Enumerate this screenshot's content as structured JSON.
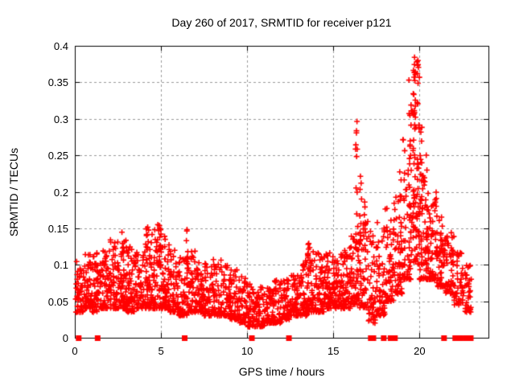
{
  "chart_data": {
    "type": "scatter",
    "title": "Day 260 of 2017, SRMTID for receiver p121",
    "xlabel": "GPS time / hours",
    "ylabel": "SRMTID / TECUs",
    "xlim": [
      0,
      24
    ],
    "ylim": [
      0,
      0.4
    ],
    "xticks": [
      {
        "v": 0,
        "label": "0"
      },
      {
        "v": 5,
        "label": "5"
      },
      {
        "v": 10,
        "label": "10"
      },
      {
        "v": 15,
        "label": "15"
      },
      {
        "v": 20,
        "label": "20"
      }
    ],
    "yticks": [
      {
        "v": 0,
        "label": "0"
      },
      {
        "v": 0.05,
        "label": "0.05"
      },
      {
        "v": 0.1,
        "label": "0.1"
      },
      {
        "v": 0.15,
        "label": "0.15"
      },
      {
        "v": 0.2,
        "label": "0.2"
      },
      {
        "v": 0.25,
        "label": "0.25"
      },
      {
        "v": 0.3,
        "label": "0.3"
      },
      {
        "v": 0.35,
        "label": "0.35"
      },
      {
        "v": 0.4,
        "label": "0.4"
      }
    ],
    "grid": {
      "show": true,
      "color": "#9a9a9a",
      "dash": [
        3,
        3
      ]
    },
    "legend": "none",
    "marker": {
      "shape": "plus",
      "color": "#ff0000",
      "size": 7
    },
    "series": [
      {
        "name": "SRMTID",
        "note": "dense scatter ~2400 pts; density_bins = [hour_start, hour_end, n_points, y_low, y_high, tail_exponent]; streaks = vertical clusters [hour, y_low, y_high, n]; zero_markers_hours = points plotted at y=0 on the axis",
        "density_bins": [
          [
            0.05,
            0.5,
            48,
            0.035,
            0.105,
            1.8
          ],
          [
            0.5,
            1.0,
            55,
            0.04,
            0.115,
            1.8
          ],
          [
            1.0,
            1.5,
            55,
            0.035,
            0.12,
            1.9
          ],
          [
            1.5,
            2.0,
            55,
            0.04,
            0.125,
            1.9
          ],
          [
            2.0,
            2.5,
            60,
            0.04,
            0.135,
            2.0
          ],
          [
            2.5,
            3.0,
            60,
            0.04,
            0.145,
            2.0
          ],
          [
            3.0,
            3.5,
            60,
            0.035,
            0.125,
            1.9
          ],
          [
            3.5,
            4.0,
            55,
            0.04,
            0.12,
            1.9
          ],
          [
            4.0,
            4.5,
            60,
            0.04,
            0.15,
            2.0
          ],
          [
            4.5,
            5.0,
            60,
            0.04,
            0.155,
            2.0
          ],
          [
            5.0,
            5.5,
            60,
            0.04,
            0.14,
            2.0
          ],
          [
            5.5,
            6.0,
            55,
            0.035,
            0.12,
            1.9
          ],
          [
            6.0,
            6.5,
            55,
            0.03,
            0.115,
            1.9
          ],
          [
            6.5,
            7.0,
            55,
            0.035,
            0.12,
            1.9
          ],
          [
            7.0,
            7.5,
            55,
            0.035,
            0.11,
            1.8
          ],
          [
            7.5,
            8.0,
            50,
            0.03,
            0.105,
            1.8
          ],
          [
            8.0,
            8.5,
            50,
            0.03,
            0.11,
            1.8
          ],
          [
            8.5,
            9.0,
            50,
            0.03,
            0.1,
            1.8
          ],
          [
            9.0,
            9.5,
            50,
            0.025,
            0.095,
            1.8
          ],
          [
            9.5,
            10.0,
            50,
            0.02,
            0.085,
            1.8
          ],
          [
            10.0,
            10.5,
            50,
            0.015,
            0.075,
            1.7
          ],
          [
            10.5,
            11.0,
            50,
            0.015,
            0.07,
            1.7
          ],
          [
            11.0,
            11.5,
            50,
            0.02,
            0.075,
            1.7
          ],
          [
            11.5,
            12.0,
            50,
            0.02,
            0.08,
            1.7
          ],
          [
            12.0,
            12.5,
            50,
            0.025,
            0.08,
            1.7
          ],
          [
            12.5,
            13.0,
            50,
            0.03,
            0.09,
            1.8
          ],
          [
            13.0,
            13.5,
            55,
            0.03,
            0.11,
            1.9
          ],
          [
            13.5,
            14.0,
            55,
            0.035,
            0.13,
            2.0
          ],
          [
            14.0,
            14.5,
            55,
            0.035,
            0.12,
            1.9
          ],
          [
            14.5,
            15.0,
            55,
            0.04,
            0.12,
            1.9
          ],
          [
            15.0,
            15.5,
            55,
            0.04,
            0.115,
            1.8
          ],
          [
            15.5,
            16.0,
            55,
            0.04,
            0.13,
            1.9
          ],
          [
            16.0,
            16.5,
            55,
            0.045,
            0.14,
            1.9
          ],
          [
            16.5,
            17.0,
            50,
            0.04,
            0.16,
            2.0
          ],
          [
            17.0,
            17.5,
            45,
            0.02,
            0.15,
            1.9
          ],
          [
            17.5,
            18.0,
            48,
            0.03,
            0.16,
            1.9
          ],
          [
            18.0,
            18.5,
            52,
            0.05,
            0.18,
            1.9
          ],
          [
            18.5,
            19.0,
            52,
            0.06,
            0.2,
            1.9
          ],
          [
            19.0,
            19.5,
            55,
            0.08,
            0.28,
            2.0
          ],
          [
            19.5,
            20.0,
            60,
            0.1,
            0.38,
            1.8
          ],
          [
            20.0,
            20.5,
            58,
            0.08,
            0.26,
            2.0
          ],
          [
            20.5,
            21.0,
            55,
            0.08,
            0.2,
            1.9
          ],
          [
            21.0,
            21.5,
            50,
            0.07,
            0.17,
            1.9
          ],
          [
            21.5,
            22.0,
            45,
            0.06,
            0.145,
            1.9
          ],
          [
            22.0,
            22.5,
            40,
            0.045,
            0.12,
            1.9
          ],
          [
            22.5,
            23.0,
            30,
            0.035,
            0.1,
            1.8
          ]
        ],
        "streaks": [
          [
            2.8,
            0.115,
            0.145,
            5
          ],
          [
            4.2,
            0.12,
            0.16,
            5
          ],
          [
            4.95,
            0.115,
            0.15,
            5
          ],
          [
            6.45,
            0.105,
            0.155,
            4
          ],
          [
            13.6,
            0.1,
            0.135,
            5
          ],
          [
            16.35,
            0.13,
            0.3,
            13
          ],
          [
            16.6,
            0.12,
            0.225,
            9
          ],
          [
            16.85,
            0.11,
            0.19,
            7
          ],
          [
            17.9,
            0.06,
            0.17,
            7
          ],
          [
            18.9,
            0.09,
            0.23,
            9
          ],
          [
            19.45,
            0.14,
            0.37,
            16
          ],
          [
            19.7,
            0.15,
            0.4,
            22
          ],
          [
            19.85,
            0.16,
            0.4,
            16
          ],
          [
            20.1,
            0.12,
            0.3,
            13
          ],
          [
            20.45,
            0.1,
            0.22,
            10
          ],
          [
            21.3,
            0.08,
            0.17,
            7
          ],
          [
            21.9,
            0.07,
            0.14,
            6
          ],
          [
            22.7,
            0.035,
            0.095,
            8
          ]
        ],
        "zero_markers_hours": [
          0.2,
          1.3,
          6.35,
          10.25,
          12.4,
          17.15,
          17.3,
          17.9,
          18.3,
          18.55,
          21.4,
          22.05,
          22.35,
          22.65,
          22.95
        ]
      }
    ]
  }
}
